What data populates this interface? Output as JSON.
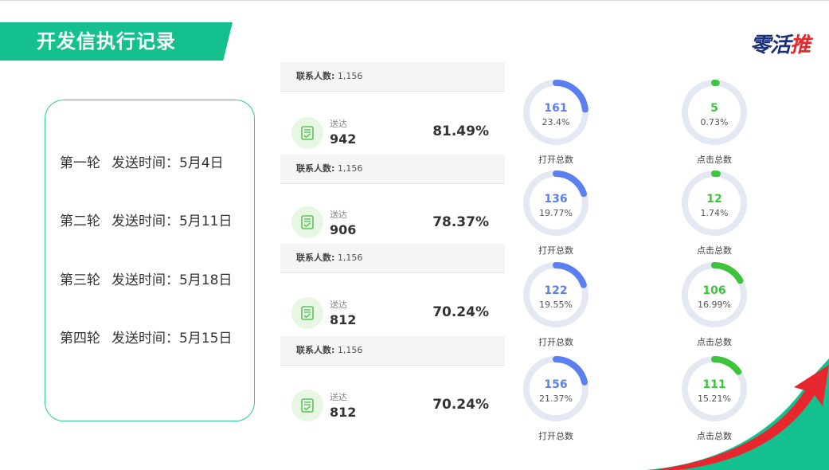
{
  "page_title": "开发信执行记录",
  "logo": {
    "main": "零活",
    "accent": "推"
  },
  "rounds": [
    {
      "label": "第一轮",
      "send_time": "发送时间：5月4日"
    },
    {
      "label": "第二轮",
      "send_time": "发送时间：5月11日"
    },
    {
      "label": "第三轮",
      "send_time": "发送时间：5月18日"
    },
    {
      "label": "第四轮",
      "send_time": "发送时间：5月15日"
    }
  ],
  "contacts": [
    {
      "label": "联系人数:",
      "value": "1,156"
    },
    {
      "label": "联系人数:",
      "value": "1,156"
    },
    {
      "label": "联系人数:",
      "value": "1,156"
    },
    {
      "label": "联系人数:",
      "value": "1,156"
    }
  ],
  "delivered": [
    {
      "label": "送达",
      "value": "942",
      "rate": "81.49%"
    },
    {
      "label": "送达",
      "value": "906",
      "rate": "78.37%"
    },
    {
      "label": "送达",
      "value": "812",
      "rate": "70.24%"
    },
    {
      "label": "送达",
      "value": "812",
      "rate": "70.24%"
    }
  ],
  "opens": [
    {
      "value": "161",
      "percent": "23.4%",
      "fraction": 0.234,
      "caption": "打开总数"
    },
    {
      "value": "136",
      "percent": "19.77%",
      "fraction": 0.1977,
      "caption": "打开总数"
    },
    {
      "value": "122",
      "percent": "19.55%",
      "fraction": 0.1955,
      "caption": "打开总数"
    },
    {
      "value": "156",
      "percent": "21.37%",
      "fraction": 0.2137,
      "caption": "打开总数"
    }
  ],
  "clicks": [
    {
      "value": "5",
      "percent": "0.73%",
      "fraction": 0.0073,
      "caption": "点击总数"
    },
    {
      "value": "12",
      "percent": "1.74%",
      "fraction": 0.0174,
      "caption": "点击总数"
    },
    {
      "value": "106",
      "percent": "16.99%",
      "fraction": 0.1699,
      "caption": "点击总数"
    },
    {
      "value": "111",
      "percent": "15.21%",
      "fraction": 0.1521,
      "caption": "点击总数"
    }
  ],
  "colors": {
    "brand_green": "#14c08e",
    "open_ring": "#5b7ff0",
    "click_ring": "#3cc43c",
    "ring_track": "#e3e8f3",
    "corner_red": "#e8262d"
  },
  "icons": {
    "delivered": "document-check-icon"
  }
}
